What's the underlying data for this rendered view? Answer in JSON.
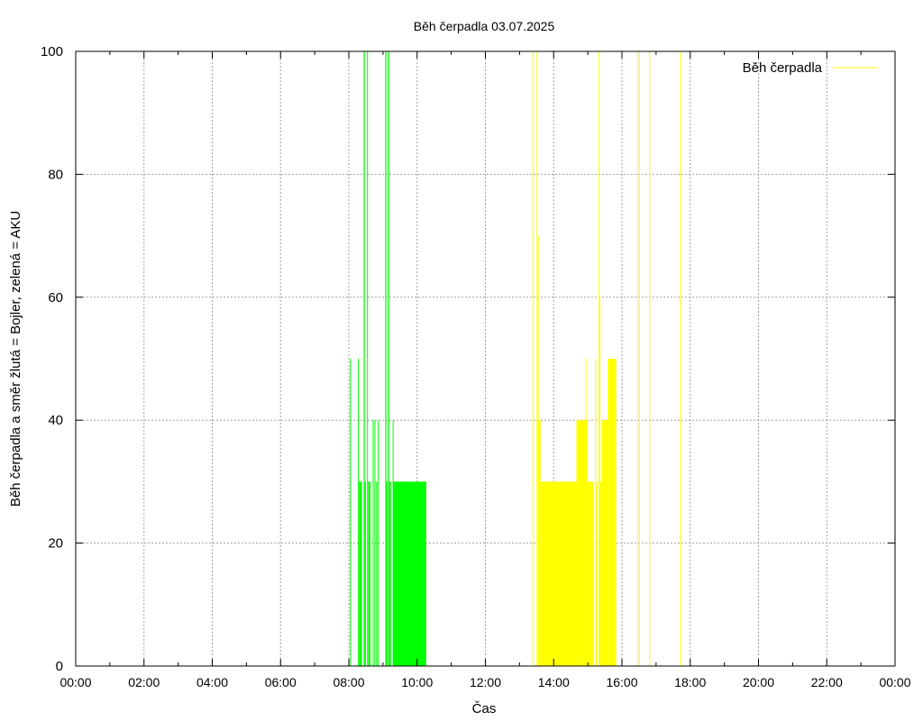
{
  "chart_data": {
    "type": "area",
    "title": "Běh čerpadla 03.07.2025",
    "xlabel": "Čas",
    "ylabel": "Běh čerpadla a směr žlutá = Bojler, zelená = AKU",
    "xlim": [
      0,
      1440
    ],
    "ylim": [
      0,
      100
    ],
    "x_ticks": [
      {
        "v": 0,
        "label": "00:00"
      },
      {
        "v": 120,
        "label": "02:00"
      },
      {
        "v": 240,
        "label": "04:00"
      },
      {
        "v": 360,
        "label": "06:00"
      },
      {
        "v": 480,
        "label": "08:00"
      },
      {
        "v": 600,
        "label": "10:00"
      },
      {
        "v": 720,
        "label": "12:00"
      },
      {
        "v": 840,
        "label": "14:00"
      },
      {
        "v": 960,
        "label": "16:00"
      },
      {
        "v": 1080,
        "label": "18:00"
      },
      {
        "v": 1200,
        "label": "20:00"
      },
      {
        "v": 1320,
        "label": "22:00"
      },
      {
        "v": 1440,
        "label": "00:00"
      }
    ],
    "y_ticks": [
      {
        "v": 0,
        "label": "0"
      },
      {
        "v": 20,
        "label": "20"
      },
      {
        "v": 40,
        "label": "40"
      },
      {
        "v": 60,
        "label": "60"
      },
      {
        "v": 80,
        "label": "80"
      },
      {
        "v": 100,
        "label": "100"
      }
    ],
    "grid": true,
    "legend": {
      "position": "top-right",
      "entries": [
        {
          "label": "Běh čerpadla",
          "color": "#ffff00"
        }
      ]
    },
    "series": [
      {
        "color": "#00ff00",
        "bars": [
          {
            "x0": 482,
            "x1": 483,
            "y": 50
          },
          {
            "x0": 496,
            "x1": 497,
            "y": 50
          },
          {
            "x0": 498,
            "x1": 503,
            "y": 30
          },
          {
            "x0": 506,
            "x1": 508,
            "y": 100
          },
          {
            "x0": 508,
            "x1": 510,
            "y": 30
          },
          {
            "x0": 512,
            "x1": 513,
            "y": 100
          },
          {
            "x0": 514,
            "x1": 518,
            "y": 30
          },
          {
            "x0": 522,
            "x1": 523,
            "y": 40
          },
          {
            "x0": 525,
            "x1": 526,
            "y": 40
          },
          {
            "x0": 528,
            "x1": 530,
            "y": 30
          },
          {
            "x0": 531,
            "x1": 532,
            "y": 40
          },
          {
            "x0": 544,
            "x1": 546,
            "y": 100
          },
          {
            "x0": 546,
            "x1": 548,
            "y": 30
          },
          {
            "x0": 549,
            "x1": 551,
            "y": 100
          },
          {
            "x0": 551,
            "x1": 554,
            "y": 30
          },
          {
            "x0": 557,
            "x1": 558,
            "y": 40
          },
          {
            "x0": 558,
            "x1": 616,
            "y": 30
          }
        ]
      },
      {
        "color": "#ffff00",
        "bars": [
          {
            "x0": 803,
            "x1": 804,
            "y": 100
          },
          {
            "x0": 810,
            "x1": 811,
            "y": 100
          },
          {
            "x0": 812,
            "x1": 813,
            "y": 70
          },
          {
            "x0": 813,
            "x1": 817,
            "y": 40
          },
          {
            "x0": 817,
            "x1": 880,
            "y": 30
          },
          {
            "x0": 880,
            "x1": 882,
            "y": 40
          },
          {
            "x0": 882,
            "x1": 900,
            "y": 40
          },
          {
            "x0": 896,
            "x1": 897,
            "y": 50
          },
          {
            "x0": 900,
            "x1": 910,
            "y": 30
          },
          {
            "x0": 913,
            "x1": 914,
            "y": 50
          },
          {
            "x0": 915,
            "x1": 917,
            "y": 30
          },
          {
            "x0": 919,
            "x1": 920,
            "y": 100
          },
          {
            "x0": 920,
            "x1": 922,
            "y": 60
          },
          {
            "x0": 922,
            "x1": 925,
            "y": 30
          },
          {
            "x0": 925,
            "x1": 935,
            "y": 40
          },
          {
            "x0": 935,
            "x1": 950,
            "y": 50
          },
          {
            "x0": 987,
            "x1": 988,
            "y": 100
          },
          {
            "x0": 990,
            "x1": 991,
            "y": 100
          },
          {
            "x0": 1008,
            "x1": 1009,
            "y": 100
          },
          {
            "x0": 1062,
            "x1": 1063,
            "y": 100
          }
        ]
      }
    ]
  }
}
